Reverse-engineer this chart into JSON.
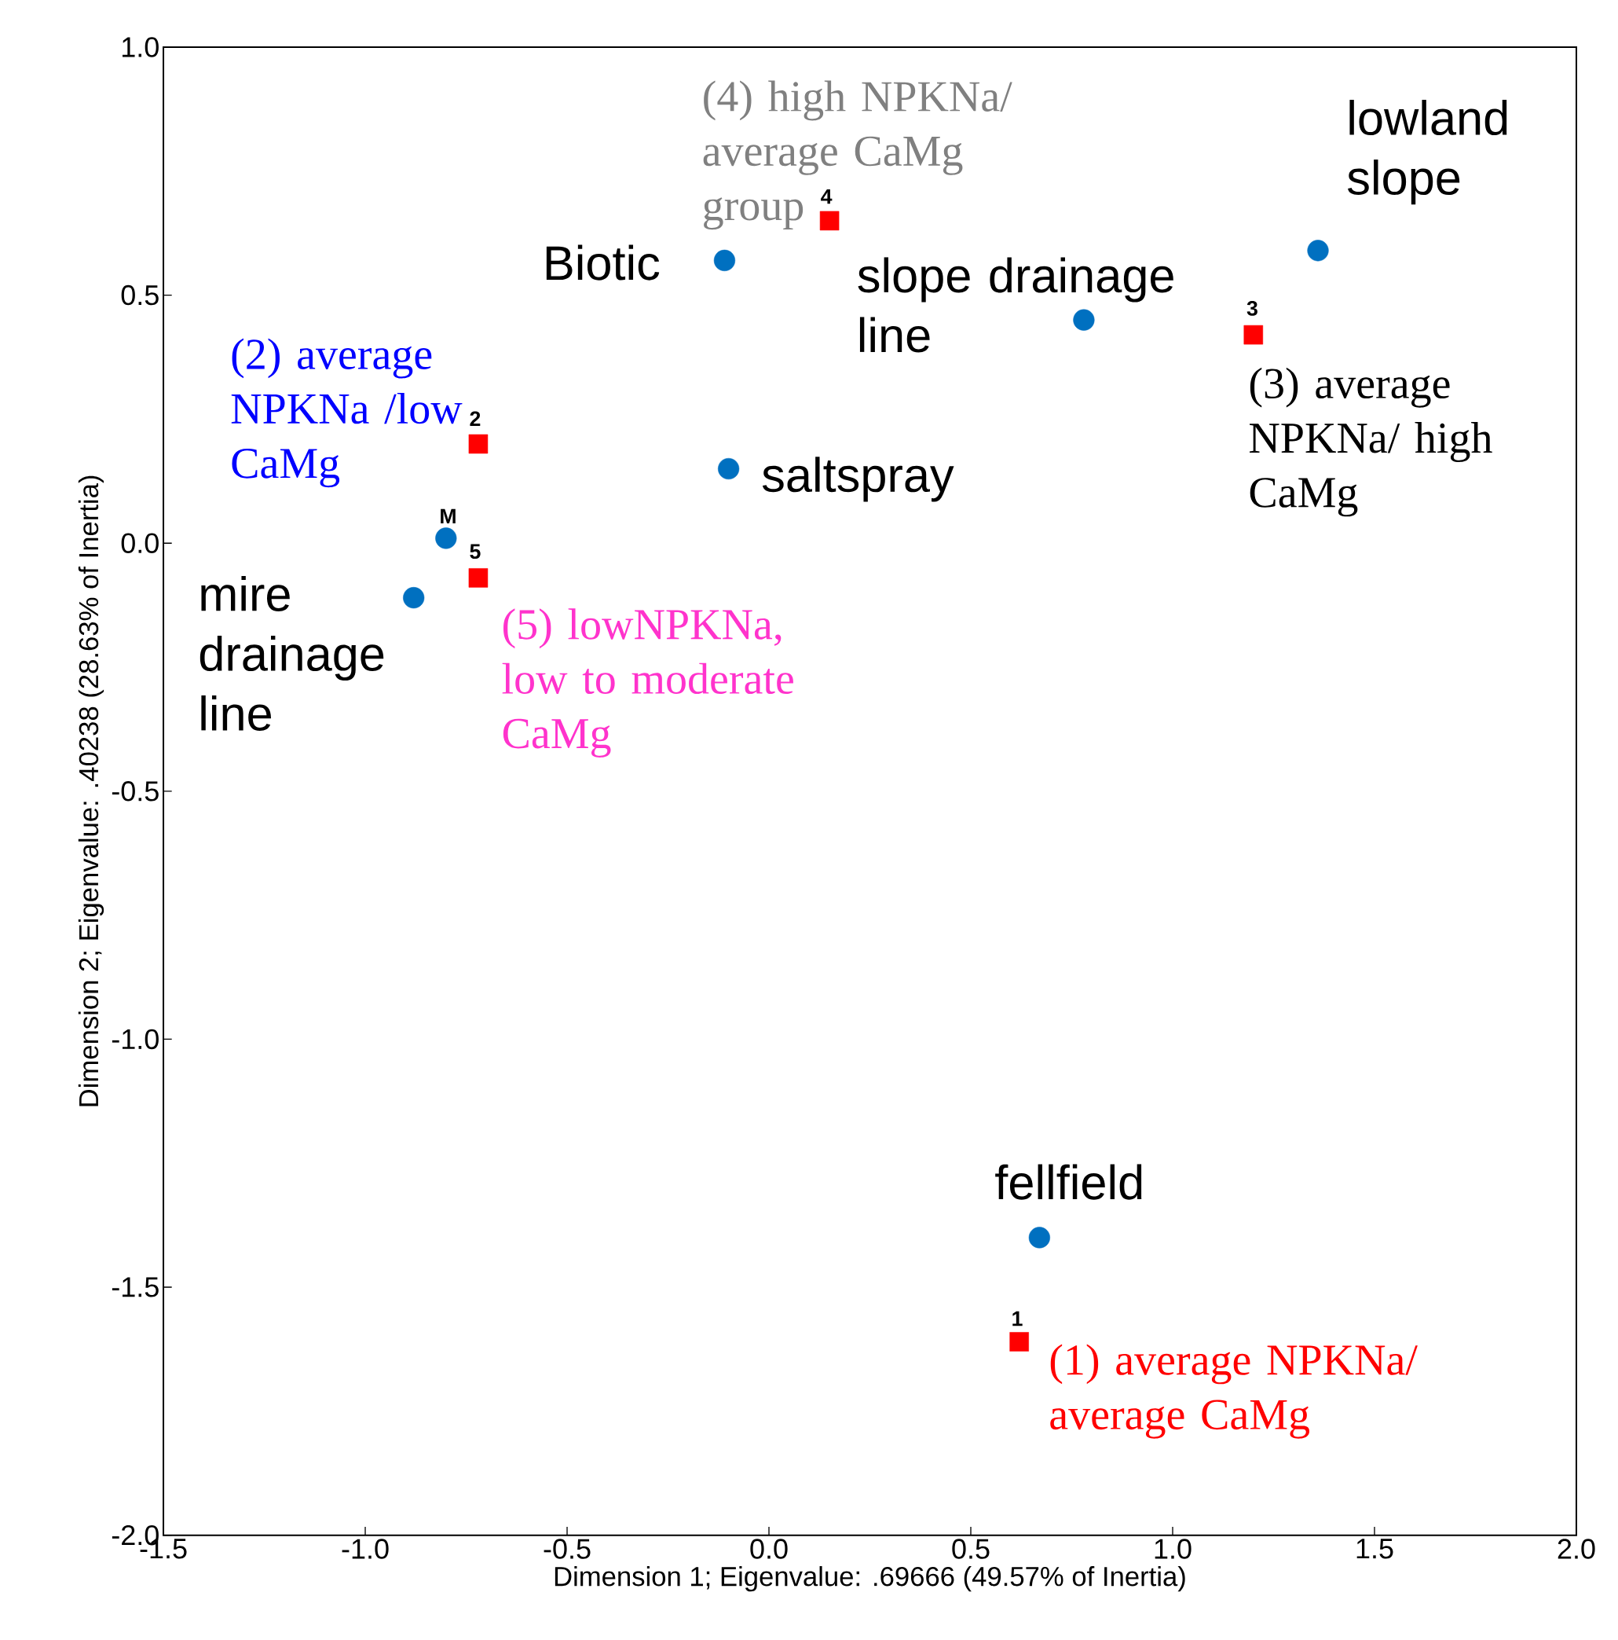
{
  "chart_data": {
    "type": "scatter",
    "xlabel": "Dimension 1; Eigenvalue: .69666 (49.57% of Inertia)",
    "ylabel": "Dimension 2; Eigenvalue: .40238 (28.63% of Inertia)",
    "xlim": [
      -1.5,
      2.0
    ],
    "ylim": [
      -2.0,
      1.0
    ],
    "xticks": [
      {
        "value": -1.5,
        "label": "-1.5"
      },
      {
        "value": -1.0,
        "label": "-1.0"
      },
      {
        "value": -0.5,
        "label": "-0.5"
      },
      {
        "value": 0,
        "label": "0.0"
      },
      {
        "value": 0.5,
        "label": "0.5"
      },
      {
        "value": 1.0,
        "label": "1.0"
      },
      {
        "value": 1.5,
        "label": "1.5"
      },
      {
        "value": 2.0,
        "label": "2.0"
      }
    ],
    "yticks": [
      {
        "value": -2.0,
        "label": "-2.0"
      },
      {
        "value": -1.5,
        "label": "-1.5"
      },
      {
        "value": -1.0,
        "label": "-1.0"
      },
      {
        "value": -0.5,
        "label": "-0.5"
      },
      {
        "value": 0,
        "label": "0.0"
      },
      {
        "value": 0.5,
        "label": "0.5"
      },
      {
        "value": 1.0,
        "label": "1.0"
      }
    ],
    "series": [
      {
        "color": "#0070c0",
        "marker": "circle",
        "x": [
          -0.11,
          1.36,
          0.78,
          -0.1,
          -0.8,
          -0.88,
          0.67
        ],
        "values": [
          0.57,
          0.59,
          0.45,
          0.15,
          0.01,
          -0.11,
          -1.4
        ]
      },
      {
        "color": "#ff0000",
        "marker": "square",
        "x": [
          0.15,
          1.2,
          -0.72,
          -0.72,
          0.62
        ],
        "values": [
          0.65,
          0.42,
          0.2,
          -0.07,
          -1.61
        ]
      }
    ],
    "annotations": [
      {
        "text": "(4) high NPKNa/ average CaMg group",
        "x": 0.15,
        "y": 0.65
      },
      {
        "text": "(2) average NPKNa /low CaMg",
        "x": -0.72,
        "y": 0.2
      },
      {
        "text": "(5) lowNPKNa, low to moderate CaMg",
        "x": -0.72,
        "y": -0.07
      },
      {
        "text": "(3) average NPKNa/ high CaMg",
        "x": 1.2,
        "y": 0.42
      },
      {
        "text": "(1) average NPKNa/ average CaMg",
        "x": 0.62,
        "y": -1.61
      },
      {
        "text": "Biotic",
        "x": -0.11,
        "y": 0.57
      },
      {
        "text": "lowland slope",
        "x": 1.36,
        "y": 0.59
      },
      {
        "text": "slope drainage line",
        "x": 0.78,
        "y": 0.45
      },
      {
        "text": "saltspray",
        "x": -0.1,
        "y": 0.15
      },
      {
        "text": "mire drainage line",
        "x": -0.88,
        "y": -0.11
      },
      {
        "text": "fellfield",
        "x": 0.67,
        "y": -1.4
      },
      {
        "text": "M",
        "x": -0.8,
        "y": 0.01
      },
      {
        "text": "5",
        "x": -0.72,
        "y": -0.07
      },
      {
        "text": "2",
        "x": -0.72,
        "y": 0.2
      },
      {
        "text": "4",
        "x": 0.15,
        "y": 0.65
      },
      {
        "text": "3",
        "x": 1.2,
        "y": 0.42
      },
      {
        "text": "1",
        "x": 0.62,
        "y": -1.61
      }
    ]
  }
}
